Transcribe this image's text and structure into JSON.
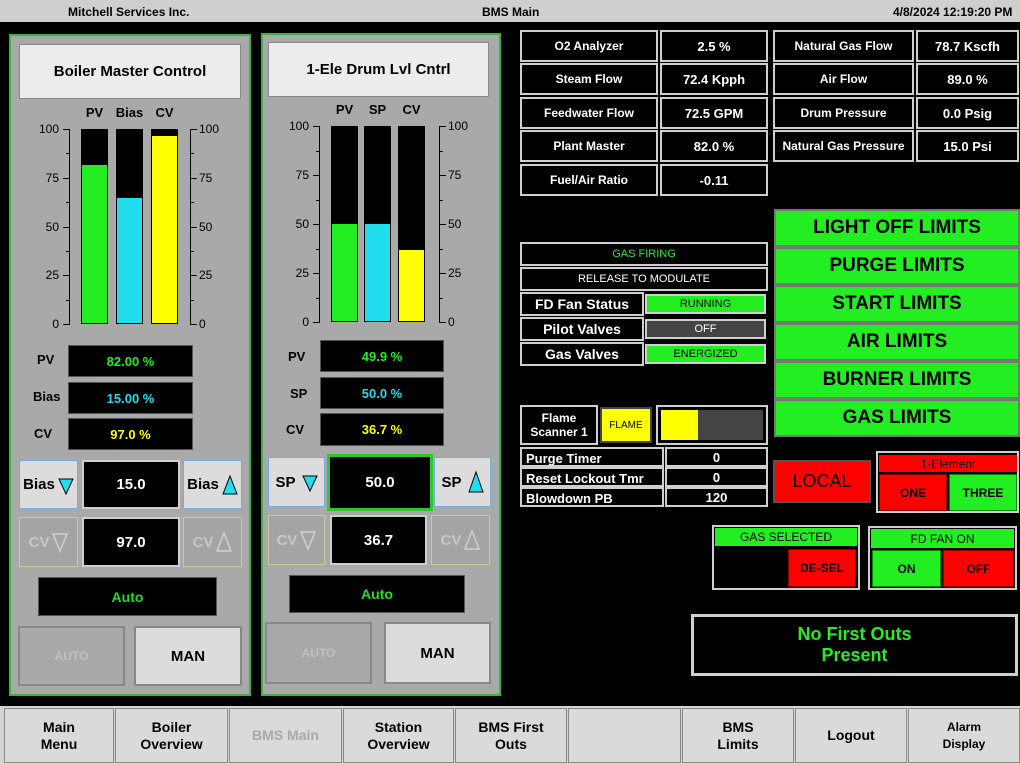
{
  "header": {
    "company": "Mitchell Services Inc.",
    "screen": "BMS Main",
    "datetime": "4/8/2024 12:19:20 PM"
  },
  "boiler_master": {
    "title": "Boiler Master Control",
    "bar_labels": [
      "PV",
      "Bias",
      "CV"
    ],
    "scale_ticks": [
      "100",
      "75",
      "50",
      "25",
      "0"
    ],
    "bars": [
      {
        "name": "PV",
        "value": 82.0,
        "color": "#22ee22"
      },
      {
        "name": "Bias",
        "value": 65.0,
        "color": "#22ddee"
      },
      {
        "name": "CV",
        "value": 97.0,
        "color": "#ffff00"
      }
    ],
    "pv_label": "PV",
    "pv_value": "82.00 %",
    "bias_label": "Bias",
    "bias_value": "15.00 %",
    "cv_label": "CV",
    "cv_value": "97.0 %",
    "bias_down": "Bias",
    "bias_setpoint": "15.0",
    "bias_up": "Bias",
    "cv_down": "CV",
    "cv_setpoint": "97.0",
    "cv_up": "CV",
    "mode": "Auto",
    "auto_btn": "AUTO",
    "man_btn": "MAN"
  },
  "drum_level": {
    "title": "1-Ele Drum Lvl Cntrl",
    "bar_labels": [
      "PV",
      "SP",
      "CV"
    ],
    "scale_ticks": [
      "100",
      "75",
      "50",
      "25",
      "0"
    ],
    "bars": [
      {
        "name": "PV",
        "value": 49.9,
        "color": "#22ee22"
      },
      {
        "name": "SP",
        "value": 50.0,
        "color": "#22ddee"
      },
      {
        "name": "CV",
        "value": 36.7,
        "color": "#ffff00"
      }
    ],
    "pv_label": "PV",
    "pv_value": "49.9 %",
    "sp_label": "SP",
    "sp_value": "50.0 %",
    "cv_label": "CV",
    "cv_value": "36.7 %",
    "sp_down": "SP",
    "sp_setpoint": "50.0",
    "sp_up": "SP",
    "cv_down": "CV",
    "cv_setpoint": "36.7",
    "cv_up": "CV",
    "mode": "Auto",
    "auto_btn": "AUTO",
    "man_btn": "MAN"
  },
  "readouts_left": [
    {
      "label": "O2 Analyzer",
      "value": "2.5 %"
    },
    {
      "label": "Steam Flow",
      "value": "72.4 Kpph"
    },
    {
      "label": "Feedwater Flow",
      "value": "72.5 GPM"
    },
    {
      "label": "Plant Master",
      "value": "82.0 %"
    },
    {
      "label": "Fuel/Air Ratio",
      "value": "-0.11"
    }
  ],
  "readouts_right": [
    {
      "label": "Natural Gas Flow",
      "value": "78.7 Kscfh"
    },
    {
      "label": "Air Flow",
      "value": "89.0 %"
    },
    {
      "label": "Drum Pressure",
      "value": "0.0 Psig"
    },
    {
      "label": "Natural Gas Pressure",
      "value": "15.0 Psi"
    }
  ],
  "status": {
    "gas_firing": "GAS FIRING",
    "release": "RELEASE TO MODULATE",
    "rows": [
      {
        "label": "FD Fan Status",
        "value": "RUNNING",
        "color": "#22ee22"
      },
      {
        "label": "Pilot Valves",
        "value": "OFF",
        "color": "#444444"
      },
      {
        "label": "Gas Valves",
        "value": "ENERGIZED",
        "color": "#22ee22"
      }
    ]
  },
  "flame": {
    "label": "Flame Scanner 1",
    "indicator": "FLAME",
    "level": 0.36
  },
  "timers": [
    {
      "label": "Purge Timer",
      "value": "0"
    },
    {
      "label": "Reset Lockout Tmr",
      "value": "0"
    },
    {
      "label": "Blowdown PB",
      "value": "120"
    }
  ],
  "limits": [
    "LIGHT OFF LIMITS",
    "PURGE LIMITS",
    "START LIMITS",
    "AIR LIMITS",
    "BURNER LIMITS",
    "GAS LIMITS"
  ],
  "local_btn": "LOCAL",
  "element": {
    "title": "1-Element",
    "one": "ONE",
    "three": "THREE"
  },
  "gas_select": {
    "title": "GAS SELECTED",
    "desel": "DE-SEL"
  },
  "fd_fan": {
    "title": "FD FAN ON",
    "on": "ON",
    "off": "OFF"
  },
  "first_outs": "No First Outs Present",
  "nav": [
    "Main Menu",
    "Boiler Overview",
    "BMS Main",
    "Station Overview",
    "BMS First Outs",
    "",
    "BMS Limits",
    "Logout",
    "Alarm Display"
  ]
}
